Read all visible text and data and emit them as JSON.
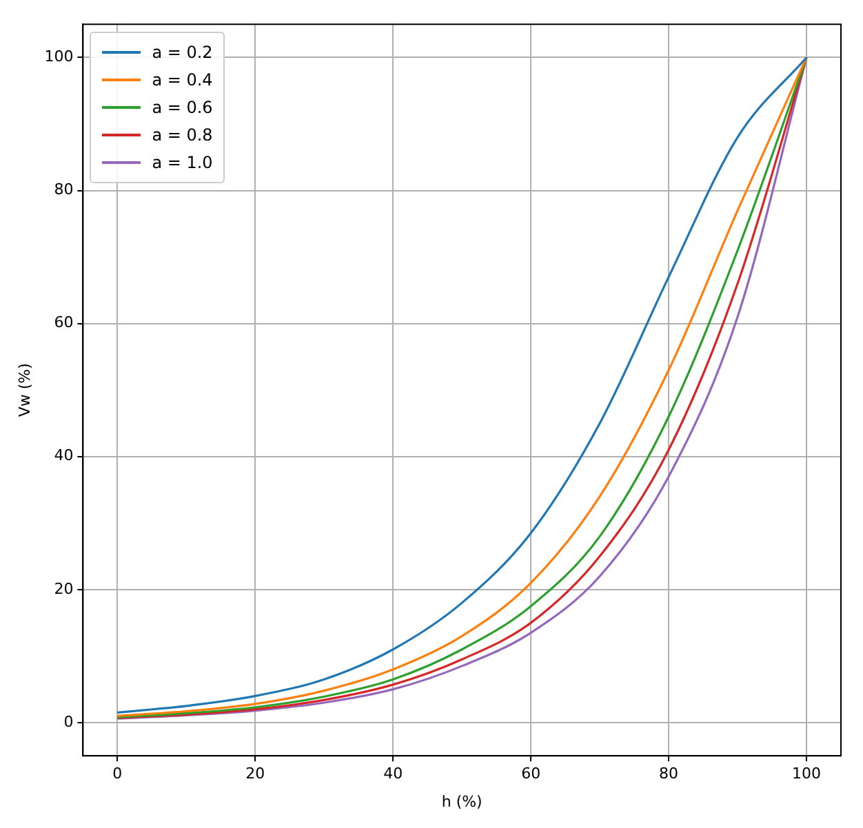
{
  "chart_data": {
    "type": "line",
    "xlabel": "h (%)",
    "ylabel": "Vw (%)",
    "x": [
      0,
      10,
      20,
      30,
      40,
      50,
      60,
      70,
      80,
      90,
      100
    ],
    "series": [
      {
        "name": "a = 0.2",
        "color": "#1f77b4",
        "values": [
          1.5,
          2.5,
          4,
          6.5,
          11,
          18,
          28.5,
          45,
          67,
          88,
          100
        ]
      },
      {
        "name": "a = 0.4",
        "color": "#ff7f0e",
        "values": [
          1,
          1.7,
          2.8,
          4.8,
          8,
          13,
          21,
          34,
          53,
          77,
          100
        ]
      },
      {
        "name": "a = 0.6",
        "color": "#2ca02c",
        "values": [
          0.8,
          1.4,
          2.3,
          3.9,
          6.5,
          11,
          17.5,
          28,
          46,
          71,
          100
        ]
      },
      {
        "name": "a = 0.8",
        "color": "#d62728",
        "values": [
          0.7,
          1.2,
          2,
          3.4,
          5.7,
          9.5,
          15,
          25,
          41,
          66,
          100
        ]
      },
      {
        "name": "a = 1.0",
        "color": "#9467bd",
        "values": [
          0.6,
          1.1,
          1.8,
          3,
          5,
          8.5,
          13.5,
          22,
          37,
          61,
          100
        ]
      }
    ],
    "xlim": [
      -5,
      105
    ],
    "ylim": [
      -5,
      105
    ],
    "xticks": [
      0,
      20,
      40,
      60,
      80,
      100
    ],
    "yticks": [
      0,
      20,
      40,
      60,
      80,
      100
    ],
    "grid": true,
    "legend": "top left",
    "marker": "none",
    "line_style": "solid"
  }
}
